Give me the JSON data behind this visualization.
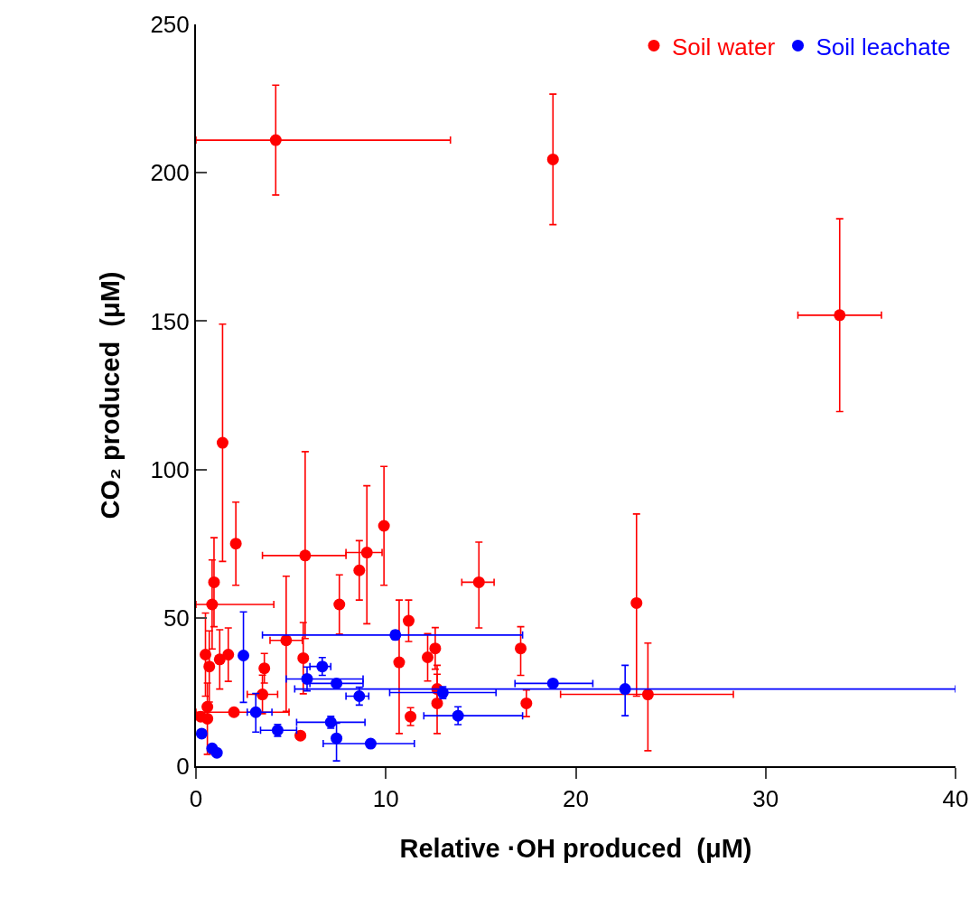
{
  "chart_data": {
    "type": "scatter",
    "xlabel": "Relative ·OH produced  (μM)",
    "ylabel": "CO₂ produced  (μM)",
    "xlim": [
      0,
      40
    ],
    "xticks": [
      0,
      10,
      20,
      30,
      40
    ],
    "ylim": [
      0,
      250
    ],
    "yticks": [
      0,
      50,
      100,
      150,
      200,
      250
    ],
    "grid": false,
    "legend": "top right",
    "marker": "circle",
    "series": [
      {
        "name": "Soil water",
        "color": "#ff0000",
        "x": [
          4.2,
          18.8,
          33.9,
          1.4,
          2.1,
          0.95,
          0.85,
          5.75,
          7.55,
          8.6,
          9.0,
          9.9,
          4.75,
          5.65,
          3.6,
          3.5,
          2.0,
          5.5,
          0.6,
          0.5,
          1.25,
          1.7,
          0.7,
          0.25,
          0.6,
          10.7,
          11.2,
          11.3,
          12.2,
          12.6,
          12.7,
          14.9,
          17.1,
          17.4,
          23.2,
          23.8,
          12.7
        ],
        "values": [
          211,
          204.5,
          152,
          109,
          75,
          62,
          54.5,
          71,
          54.5,
          66,
          72,
          81,
          42.4,
          36.4,
          33,
          24.2,
          18.2,
          10.3,
          20,
          37.6,
          36,
          37.6,
          33.6,
          16.7,
          16,
          35,
          49,
          16.7,
          36.7,
          39.7,
          21.2,
          62,
          39.7,
          21.2,
          55,
          24.2,
          26
        ],
        "errors": [
          18.5,
          22,
          32.5,
          40,
          14,
          15,
          15,
          [
            43,
            106
          ],
          10,
          10,
          [
            48,
            94.5
          ],
          20,
          [
            18.5,
            64
          ],
          12,
          5,
          6.5,
          null,
          null,
          null,
          14,
          10,
          9,
          12,
          null,
          12,
          [
            11,
            56
          ],
          7,
          3,
          8,
          7,
          [
            11,
            34
          ],
          [
            46.6,
            75.5
          ],
          [
            30.6,
            47
          ],
          4.5,
          [
            23.6,
            85
          ],
          [
            5.2,
            41.5
          ],
          5
        ],
        "xerrors": [
          [
            0,
            13.4
          ],
          null,
          2.2,
          null,
          null,
          null,
          [
            0,
            4.1
          ],
          [
            3.5,
            7.9
          ],
          null,
          null,
          [
            7.9,
            9.8
          ],
          null,
          [
            3.9,
            5.6
          ],
          null,
          null,
          0.8,
          [
            0,
            4.9
          ],
          null,
          null,
          null,
          null,
          null,
          null,
          null,
          null,
          null,
          null,
          null,
          null,
          null,
          null,
          [
            14.0,
            15.7
          ],
          null,
          null,
          null,
          [
            19.2,
            28.3
          ],
          null
        ]
      },
      {
        "name": "Soil leachate",
        "color": "#0000ff",
        "x": [
          2.5,
          10.5,
          6.65,
          5.85,
          7.4,
          8.6,
          13.0,
          18.8,
          22.6,
          3.15,
          4.3,
          7.1,
          7.4,
          9.2,
          0.3,
          0.85,
          1.1,
          13.8
        ],
        "values": [
          37.3,
          44.2,
          33.6,
          29.4,
          27.9,
          23.6,
          24.8,
          27.9,
          26,
          18.2,
          12.1,
          14.8,
          9.4,
          7.6,
          11,
          6,
          4.5,
          17
        ],
        "errors": [
          [
            21.5,
            52
          ],
          1.5,
          3,
          4,
          null,
          3,
          2,
          null,
          [
            17,
            34
          ],
          [
            11.5,
            24.5
          ],
          2,
          2,
          [
            1.8,
            14.5
          ],
          null,
          null,
          null,
          null,
          3
        ],
        "xerrors": [
          null,
          [
            3.5,
            17.2
          ],
          [
            6.0,
            7.1
          ],
          [
            4.75,
            8.8
          ],
          [
            6.0,
            8.8
          ],
          [
            7.9,
            9.1
          ],
          2.8,
          [
            16.8,
            20.9
          ],
          [
            5.2,
            40
          ],
          [
            2.7,
            4.0
          ],
          [
            3.4,
            5.3
          ],
          [
            5.3,
            8.9
          ],
          null,
          [
            6.7,
            11.5
          ],
          null,
          null,
          null,
          [
            12.0,
            17.2
          ]
        ]
      }
    ]
  }
}
